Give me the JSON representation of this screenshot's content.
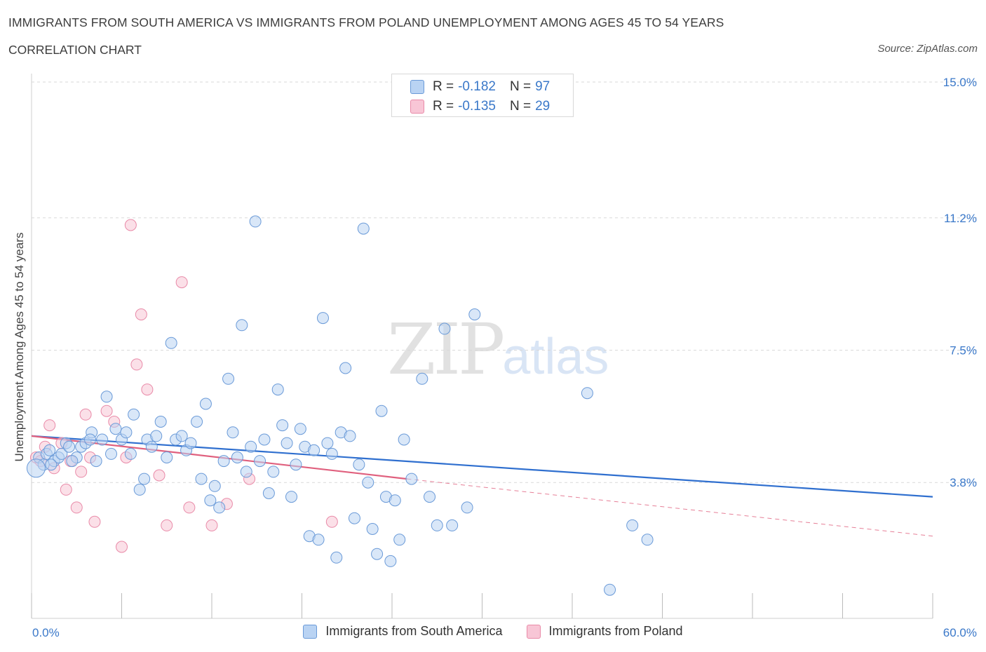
{
  "header": {
    "title": "IMMIGRANTS FROM SOUTH AMERICA VS IMMIGRANTS FROM POLAND UNEMPLOYMENT AMONG AGES 45 TO 54 YEARS",
    "subtitle": "CORRELATION CHART",
    "source": "Source: ZipAtlas.com"
  },
  "watermark": {
    "part1": "ZIP",
    "part2": "atlas"
  },
  "legend": {
    "rows": [
      {
        "r_label": "R =",
        "r_value": "-0.182",
        "n_label": "N =",
        "n_value": "97"
      },
      {
        "r_label": "R =",
        "r_value": "-0.135",
        "n_label": "N =",
        "n_value": "29"
      }
    ]
  },
  "bottom_legend": {
    "items": [
      {
        "label": "Immigrants from South America"
      },
      {
        "label": "Immigrants from Poland"
      }
    ]
  },
  "colors": {
    "blue_fill": "#b9d3f3",
    "blue_stroke": "#6a9ad8",
    "blue_line": "#2f6fcf",
    "pink_fill": "#f8c6d6",
    "pink_stroke": "#e98aa8",
    "pink_line": "#e0607e",
    "tick_text": "#3a78c9",
    "grid": "#d9d9d9"
  },
  "chart_data": {
    "type": "scatter",
    "title": "IMMIGRANTS FROM SOUTH AMERICA VS IMMIGRANTS FROM POLAND UNEMPLOYMENT AMONG AGES 45 TO 54 YEARS",
    "xlabel": "",
    "ylabel": "Unemployment Among Ages 45 to 54 years",
    "xlim": [
      0,
      60
    ],
    "ylim": [
      0,
      15
    ],
    "x_tick_labels": [
      "0.0%",
      "60.0%"
    ],
    "y_ticks": [
      3.8,
      7.5,
      11.2,
      15.0
    ],
    "y_tick_labels": [
      "3.8%",
      "7.5%",
      "11.2%",
      "15.0%"
    ],
    "grid": true,
    "legend_position": "top-center",
    "series": [
      {
        "name": "Immigrants from South America",
        "r": -0.182,
        "n": 97,
        "trend": {
          "x": [
            0,
            60
          ],
          "y": [
            5.1,
            3.4
          ]
        },
        "points": [
          [
            0.5,
            4.5
          ],
          [
            0.8,
            4.3
          ],
          [
            1.0,
            4.6
          ],
          [
            1.2,
            4.7
          ],
          [
            1.5,
            4.4
          ],
          [
            1.8,
            4.5
          ],
          [
            2.0,
            4.6
          ],
          [
            2.3,
            4.9
          ],
          [
            2.5,
            4.8
          ],
          [
            3.0,
            4.5
          ],
          [
            3.3,
            4.8
          ],
          [
            3.6,
            4.9
          ],
          [
            4.0,
            5.2
          ],
          [
            4.3,
            4.4
          ],
          [
            4.7,
            5.0
          ],
          [
            5.0,
            6.2
          ],
          [
            5.3,
            4.6
          ],
          [
            5.6,
            5.3
          ],
          [
            6.0,
            5.0
          ],
          [
            6.3,
            5.2
          ],
          [
            6.6,
            4.6
          ],
          [
            6.8,
            5.7
          ],
          [
            7.2,
            3.6
          ],
          [
            7.5,
            3.9
          ],
          [
            7.7,
            5.0
          ],
          [
            8.0,
            4.8
          ],
          [
            8.3,
            5.1
          ],
          [
            8.6,
            5.5
          ],
          [
            9.0,
            4.5
          ],
          [
            9.3,
            7.7
          ],
          [
            9.6,
            5.0
          ],
          [
            10.0,
            5.1
          ],
          [
            10.3,
            4.7
          ],
          [
            10.6,
            4.9
          ],
          [
            11.0,
            5.5
          ],
          [
            11.3,
            3.9
          ],
          [
            11.6,
            6.0
          ],
          [
            11.9,
            3.3
          ],
          [
            12.2,
            3.7
          ],
          [
            12.5,
            3.1
          ],
          [
            12.8,
            4.4
          ],
          [
            13.1,
            6.7
          ],
          [
            13.4,
            5.2
          ],
          [
            13.7,
            4.5
          ],
          [
            14.0,
            8.2
          ],
          [
            14.3,
            4.1
          ],
          [
            14.6,
            4.8
          ],
          [
            14.9,
            11.1
          ],
          [
            15.2,
            4.4
          ],
          [
            15.5,
            5.0
          ],
          [
            15.8,
            3.5
          ],
          [
            16.1,
            4.1
          ],
          [
            16.4,
            6.4
          ],
          [
            16.7,
            5.4
          ],
          [
            17.0,
            4.9
          ],
          [
            17.3,
            3.4
          ],
          [
            17.6,
            4.3
          ],
          [
            17.9,
            5.3
          ],
          [
            18.2,
            4.8
          ],
          [
            18.5,
            2.3
          ],
          [
            18.8,
            4.7
          ],
          [
            19.1,
            2.2
          ],
          [
            19.4,
            8.4
          ],
          [
            19.7,
            4.9
          ],
          [
            20.0,
            4.6
          ],
          [
            20.3,
            1.7
          ],
          [
            20.6,
            5.2
          ],
          [
            20.9,
            7.0
          ],
          [
            21.2,
            5.1
          ],
          [
            21.5,
            2.8
          ],
          [
            21.8,
            4.3
          ],
          [
            22.1,
            10.9
          ],
          [
            22.4,
            3.8
          ],
          [
            22.7,
            2.5
          ],
          [
            23.0,
            1.8
          ],
          [
            23.3,
            5.8
          ],
          [
            23.6,
            3.4
          ],
          [
            23.9,
            1.6
          ],
          [
            24.2,
            3.3
          ],
          [
            24.5,
            2.2
          ],
          [
            24.8,
            5.0
          ],
          [
            25.3,
            3.9
          ],
          [
            26.0,
            6.7
          ],
          [
            26.5,
            3.4
          ],
          [
            27.0,
            2.6
          ],
          [
            27.5,
            8.1
          ],
          [
            28.0,
            2.6
          ],
          [
            29.0,
            3.1
          ],
          [
            29.5,
            8.5
          ],
          [
            37.0,
            6.3
          ],
          [
            38.5,
            0.8
          ],
          [
            40.0,
            2.6
          ],
          [
            41.0,
            2.2
          ],
          [
            1.3,
            4.3
          ],
          [
            2.7,
            4.4
          ],
          [
            3.9,
            5.0
          ],
          [
            0.3,
            4.2
          ]
        ]
      },
      {
        "name": "Immigrants from Poland",
        "r": -0.135,
        "n": 29,
        "trend": {
          "x": [
            0,
            25
          ],
          "y": [
            5.1,
            3.9
          ]
        },
        "trend_extension": {
          "x": [
            25,
            60
          ],
          "y": [
            3.9,
            2.3
          ]
        },
        "points": [
          [
            0.3,
            4.5
          ],
          [
            0.6,
            4.4
          ],
          [
            0.9,
            4.8
          ],
          [
            1.2,
            5.4
          ],
          [
            1.5,
            4.2
          ],
          [
            2.0,
            4.9
          ],
          [
            2.3,
            3.6
          ],
          [
            2.6,
            4.4
          ],
          [
            3.0,
            3.1
          ],
          [
            3.3,
            4.1
          ],
          [
            3.6,
            5.7
          ],
          [
            3.9,
            4.5
          ],
          [
            4.2,
            2.7
          ],
          [
            5.0,
            5.8
          ],
          [
            5.5,
            5.5
          ],
          [
            6.0,
            2.0
          ],
          [
            6.3,
            4.5
          ],
          [
            6.6,
            11.0
          ],
          [
            7.0,
            7.1
          ],
          [
            7.3,
            8.5
          ],
          [
            7.7,
            6.4
          ],
          [
            8.5,
            4.0
          ],
          [
            9.0,
            2.6
          ],
          [
            10.0,
            9.4
          ],
          [
            10.5,
            3.1
          ],
          [
            12.0,
            2.6
          ],
          [
            13.0,
            3.2
          ],
          [
            14.5,
            3.9
          ],
          [
            20.0,
            2.7
          ]
        ]
      }
    ]
  }
}
